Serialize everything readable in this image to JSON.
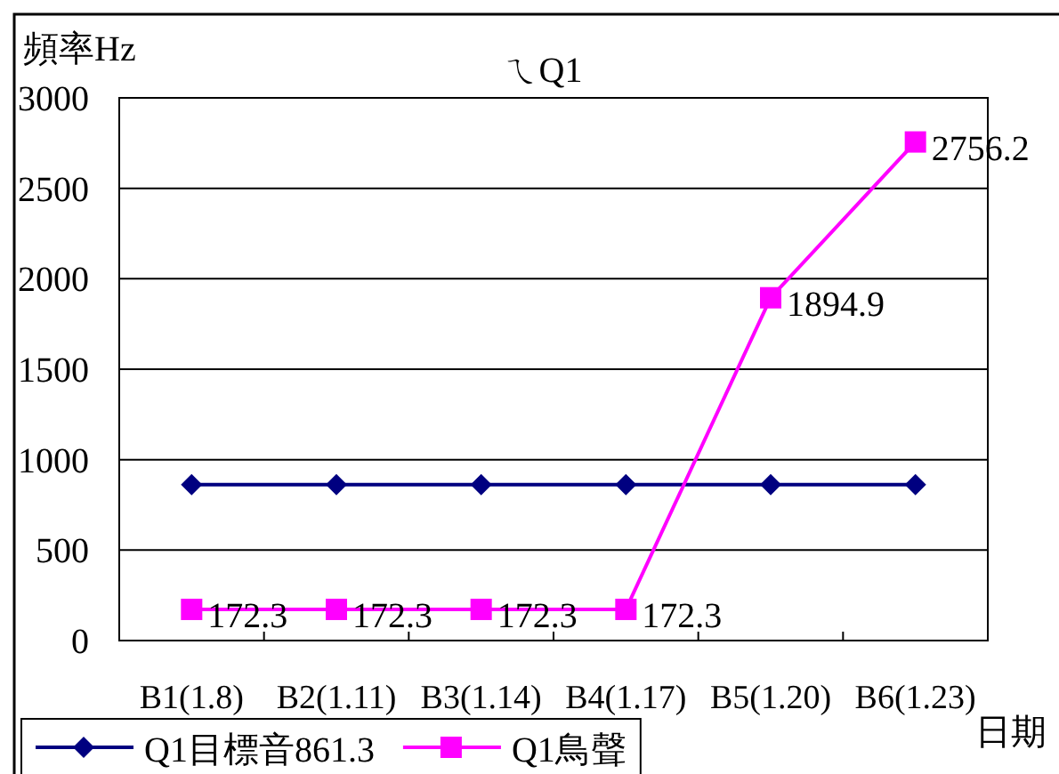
{
  "chart_data": {
    "type": "line",
    "title": "ㄟQ1",
    "xlabel": "日期",
    "ylabel": "頻率Hz",
    "categories": [
      "B1(1.8)",
      "B2(1.11)",
      "B3(1.14)",
      "B4(1.17)",
      "B5(1.20)",
      "B6(1.23)"
    ],
    "series": [
      {
        "name": "Q1目標音861.3",
        "color": "#000080",
        "marker": "diamond",
        "values": [
          861.3,
          861.3,
          861.3,
          861.3,
          861.3,
          861.3
        ]
      },
      {
        "name": "Q1鳥聲",
        "color": "#ff00ff",
        "marker": "square",
        "values": [
          172.3,
          172.3,
          172.3,
          172.3,
          1894.9,
          2756.2
        ],
        "value_labels": [
          "172.3",
          "172.3",
          "172.3",
          "172.3",
          "1894.9",
          "2756.2"
        ]
      }
    ],
    "ylim": [
      0,
      3000
    ],
    "yticks": [
      0,
      500,
      1000,
      1500,
      2000,
      2500,
      3000
    ],
    "grid": "y",
    "legend": "bottom left"
  }
}
